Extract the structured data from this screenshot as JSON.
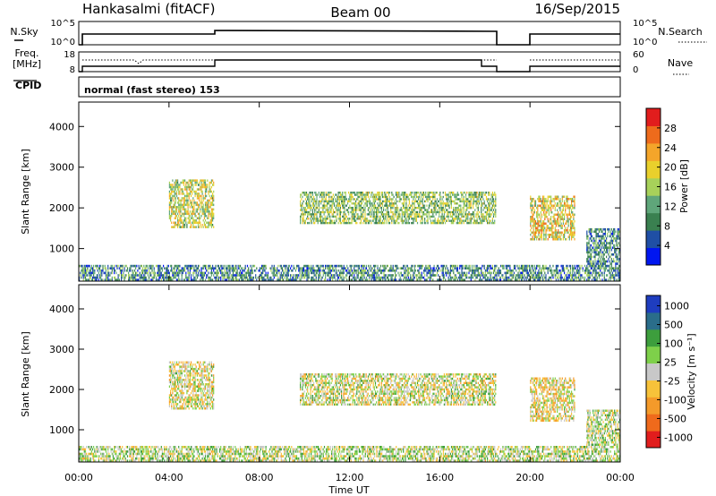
{
  "header": {
    "station": "Hankasalmi (fitACF)",
    "beam": "Beam 00",
    "date": "16/Sep/2015"
  },
  "params": {
    "nsky_label": "N.Sky",
    "nsearch_label": "N.Search",
    "exp_high": "10^5",
    "exp_low": "10^0",
    "freq_label_1": "Freq.",
    "freq_label_2": "[MHz]",
    "freq_high": "18",
    "freq_low": "8",
    "nave_label": "Nave",
    "nave_high": "60",
    "nave_low": "0",
    "cpid_label": "CPID",
    "cpid_text": "normal (fast stereo) 153"
  },
  "colors": {
    "power": [
      "#0016f0",
      "#1f4fa5",
      "#3a8050",
      "#5fa67a",
      "#a7d15a",
      "#e9d02c",
      "#f4a52a",
      "#ee6b1c",
      "#e11d1d"
    ],
    "velocity": [
      "#e11d1d",
      "#ef6a1c",
      "#f49a2a",
      "#f7c23a",
      "#c8c8c8",
      "#7ed04a",
      "#3d9e3d",
      "#2a6d8a",
      "#1e3dbf"
    ]
  },
  "chart_data": [
    {
      "type": "heatmap",
      "name": "power",
      "xlabel": "",
      "ylabel": "Slant Range [km]",
      "xlim": [
        "00:00",
        "24:00"
      ],
      "ylim": [
        200,
        4600
      ],
      "yticks": [
        "1000",
        "2000",
        "3000",
        "4000"
      ],
      "colorbar": {
        "label": "Power [dB]",
        "ticks": [
          "4",
          "8",
          "12",
          "16",
          "20",
          "24",
          "28"
        ],
        "range": [
          0,
          32
        ]
      },
      "regions": [
        {
          "t0": 0,
          "t1": 24,
          "r0": 200,
          "r1": 600,
          "level": 0.3
        },
        {
          "t0": 4.0,
          "t1": 6.0,
          "r0": 1500,
          "r1": 2700,
          "level": 0.55
        },
        {
          "t0": 9.8,
          "t1": 18.5,
          "r0": 1600,
          "r1": 2400,
          "level": 0.45
        },
        {
          "t0": 20.0,
          "t1": 22.0,
          "r0": 1200,
          "r1": 2300,
          "level": 0.6
        },
        {
          "t0": 22.5,
          "t1": 24.0,
          "r0": 600,
          "r1": 1500,
          "level": 0.3
        }
      ]
    },
    {
      "type": "heatmap",
      "name": "velocity",
      "xlabel": "Time UT",
      "ylabel": "Slant Range [km]",
      "xlim": [
        "00:00",
        "24:00"
      ],
      "ylim": [
        200,
        4600
      ],
      "yticks": [
        "1000",
        "2000",
        "3000",
        "4000"
      ],
      "xticks": [
        "00:00",
        "04:00",
        "08:00",
        "12:00",
        "16:00",
        "20:00",
        "00:00"
      ],
      "colorbar": {
        "label": "Velocity [m s⁻¹]",
        "ticks": [
          "1000",
          "500",
          "100",
          "25",
          "-25",
          "-100",
          "-500",
          "-1000"
        ]
      },
      "regions": [
        {
          "t0": 0,
          "t1": 24,
          "r0": 200,
          "r1": 600,
          "level": 0.55
        },
        {
          "t0": 4.0,
          "t1": 6.0,
          "r0": 1500,
          "r1": 2700,
          "level": 0.48
        },
        {
          "t0": 9.8,
          "t1": 18.5,
          "r0": 1600,
          "r1": 2400,
          "level": 0.5
        },
        {
          "t0": 20.0,
          "t1": 22.0,
          "r0": 1200,
          "r1": 2300,
          "level": 0.45
        },
        {
          "t0": 22.5,
          "t1": 24.0,
          "r0": 600,
          "r1": 1500,
          "level": 0.55
        }
      ]
    }
  ]
}
